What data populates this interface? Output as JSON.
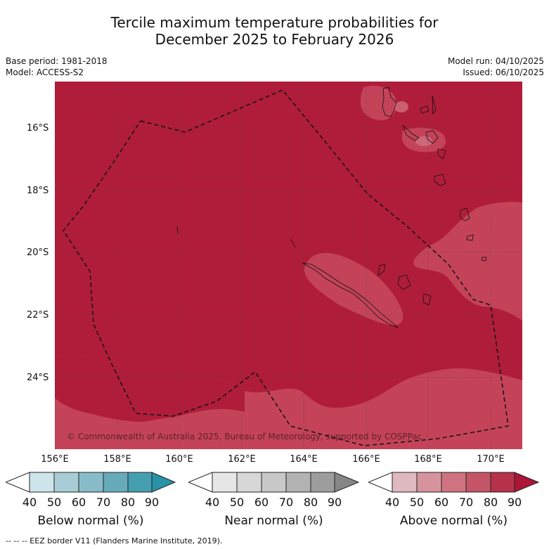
{
  "title": {
    "line1": "Tercile maximum temperature probabilities for",
    "line2": "December 2025 to February 2026"
  },
  "meta": {
    "base_period": "Base period: 1981-2018",
    "model": "Model: ACCESS-S2",
    "model_run": "Model run: 04/10/2025",
    "issued": "Issued: 06/10/2025"
  },
  "map": {
    "lat_labels": [
      "16°S",
      "18°S",
      "20°S",
      "22°S",
      "24°S"
    ],
    "lon_labels": [
      "156°E",
      "158°E",
      "160°E",
      "162°E",
      "164°E",
      "166°E",
      "168°E",
      "170°E"
    ],
    "copyright": "© Commonwealth of Australia 2025, Bureau of Meteorology, supported by COSPPac",
    "colors": {
      "above_80_90": "#b01d3a",
      "above_70_80": "#c44359"
    }
  },
  "colorbars": [
    {
      "title": "Below normal (%)",
      "ticks": [
        "40",
        "50",
        "60",
        "70",
        "80",
        "90"
      ],
      "colors": [
        "#ffffff",
        "#cde4ea",
        "#a9cdd6",
        "#88bcc8",
        "#67abba",
        "#469fb0",
        "#2a92a6"
      ]
    },
    {
      "title": "Near normal (%)",
      "ticks": [
        "40",
        "50",
        "60",
        "70",
        "80",
        "90"
      ],
      "colors": [
        "#ffffff",
        "#e6e6e6",
        "#d7d7d7",
        "#c8c8c8",
        "#b3b3b3",
        "#9d9d9d",
        "#868686"
      ]
    },
    {
      "title": "Above normal (%)",
      "ticks": [
        "40",
        "50",
        "60",
        "70",
        "80",
        "90"
      ],
      "colors": [
        "#ffffff",
        "#e0b8bf",
        "#d6939e",
        "#cd7480",
        "#c45566",
        "#b6324a",
        "#aa1638"
      ]
    }
  ],
  "legend_note": "--  --  -- EEZ border V11 (Flanders Marine Institute, 2019)."
}
